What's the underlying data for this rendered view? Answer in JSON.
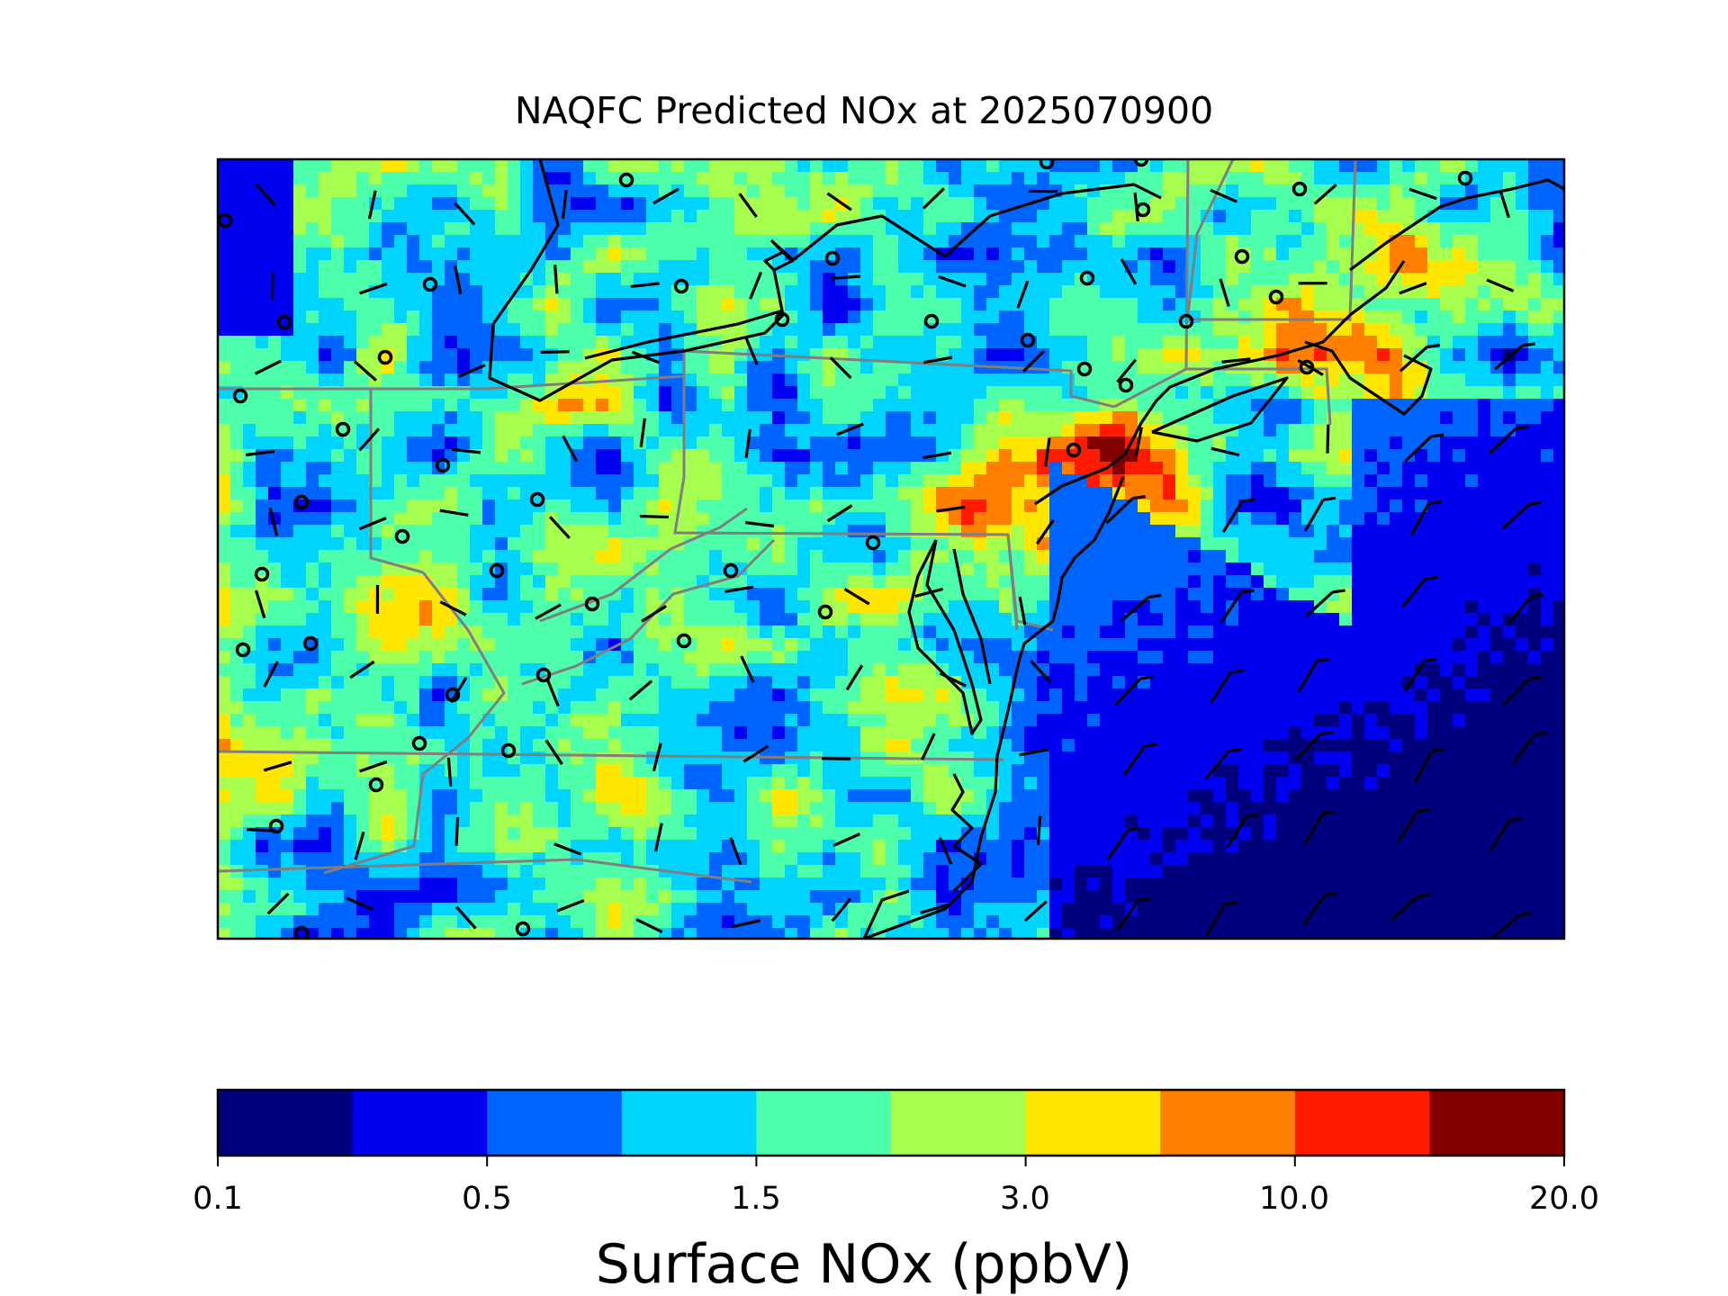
{
  "title": "NAQFC Predicted NOx at 2025070900",
  "colorbar": {
    "label": "Surface NOx (ppbV)",
    "tick_labels": [
      "0.1",
      "0.5",
      "1.5",
      "3.0",
      "10.0",
      "20.0"
    ],
    "colors": [
      "#00007f",
      "#0000f1",
      "#0064ff",
      "#00d4ff",
      "#4dffaa",
      "#a6ff4f",
      "#ffe600",
      "#ff7f00",
      "#ff1a00",
      "#800000"
    ]
  },
  "map": {
    "field": "Surface NOx",
    "units": "ppbV",
    "colormap": "jet",
    "overlays": [
      "coastlines",
      "state-boundaries",
      "wind-barbs",
      "station-markers"
    ]
  }
}
